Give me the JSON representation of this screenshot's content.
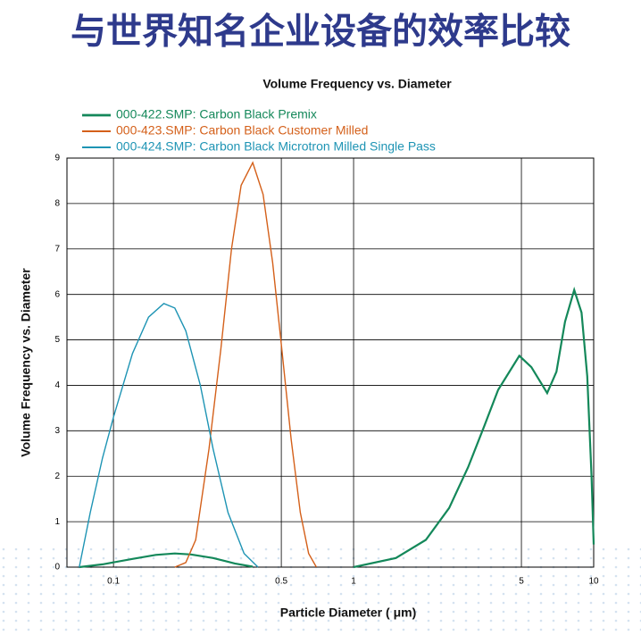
{
  "chart_data": {
    "type": "line",
    "slide_title": "与世界知名企业设备的效率比较",
    "title": "Volume Frequency vs. Diameter",
    "x_label": "Particle Diameter ( μm)",
    "y_label": "Volume Frequency vs. Diameter",
    "xscale": "log",
    "xlim": [
      0.064,
      10
    ],
    "xticks": [
      0.1,
      0.5,
      1,
      5,
      10
    ],
    "ylim": [
      0,
      9
    ],
    "yticks": [
      0,
      1,
      2,
      3,
      4,
      5,
      6,
      7,
      8,
      9
    ],
    "grid": true,
    "series": [
      {
        "name": "000-422.SMP: Carbon Black Premix",
        "color": "#14885a",
        "width": 2.2,
        "x": [
          0.072,
          0.09,
          0.12,
          0.15,
          0.18,
          0.21,
          0.26,
          0.32,
          0.38,
          0.4,
          1,
          1.5,
          2,
          2.5,
          3,
          3.5,
          4,
          4.9,
          5.5,
          6.4,
          7,
          7.6,
          8.3,
          8.9,
          9.4,
          9.8,
          10
        ],
        "values": [
          0,
          0.06,
          0.18,
          0.27,
          0.3,
          0.28,
          0.2,
          0.08,
          0.01,
          null,
          0,
          0.2,
          0.6,
          1.3,
          2.2,
          3.1,
          3.9,
          4.65,
          4.4,
          3.83,
          4.3,
          5.4,
          6.1,
          5.6,
          4.2,
          2.0,
          0.5
        ]
      },
      {
        "name": "000-423.SMP: Carbon Black Customer Milled",
        "color": "#d4601a",
        "width": 1.4,
        "x": [
          0.18,
          0.2,
          0.22,
          0.25,
          0.28,
          0.31,
          0.34,
          0.38,
          0.42,
          0.46,
          0.5,
          0.55,
          0.6,
          0.65,
          0.7
        ],
        "values": [
          0,
          0.1,
          0.6,
          2.6,
          4.8,
          7.0,
          8.4,
          8.9,
          8.2,
          6.7,
          4.9,
          2.8,
          1.2,
          0.3,
          0
        ]
      },
      {
        "name": "000-424.SMP: Carbon Black Microtron Milled Single Pass",
        "color": "#1e94b4",
        "width": 1.4,
        "x": [
          0.072,
          0.08,
          0.09,
          0.1,
          0.12,
          0.14,
          0.162,
          0.18,
          0.2,
          0.23,
          0.26,
          0.3,
          0.35,
          0.4
        ],
        "values": [
          0,
          1.2,
          2.4,
          3.3,
          4.7,
          5.5,
          5.8,
          5.7,
          5.2,
          4.0,
          2.6,
          1.2,
          0.3,
          0
        ]
      }
    ]
  }
}
